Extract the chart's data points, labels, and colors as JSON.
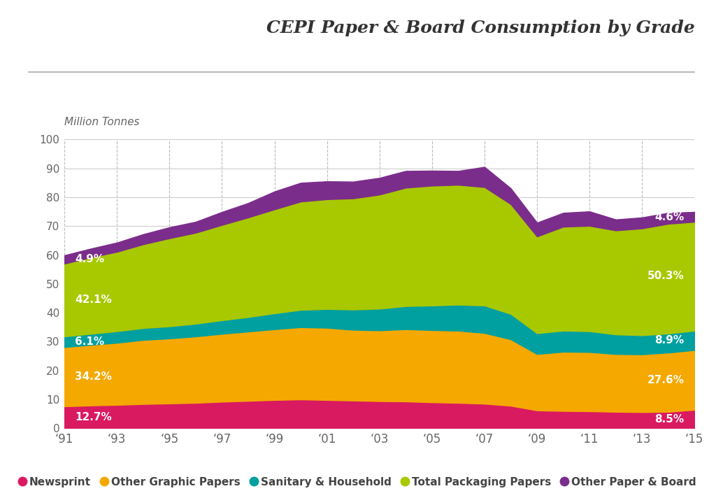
{
  "title": "CEPI Paper & Board Consumption by Grade",
  "ylabel": "Million Tonnes",
  "years": [
    1991,
    1992,
    1993,
    1994,
    1995,
    1996,
    1997,
    1998,
    1999,
    2000,
    2001,
    2002,
    2003,
    2004,
    2005,
    2006,
    2007,
    2008,
    2009,
    2010,
    2011,
    2012,
    2013,
    2014,
    2015
  ],
  "newsprint": [
    7.6,
    7.9,
    8.1,
    8.4,
    8.6,
    8.8,
    9.2,
    9.5,
    9.8,
    10.0,
    9.8,
    9.6,
    9.4,
    9.3,
    9.0,
    8.8,
    8.5,
    7.8,
    6.2,
    6.0,
    5.9,
    5.7,
    5.6,
    5.7,
    6.4
  ],
  "other_graphic": [
    20.5,
    21.0,
    21.5,
    22.2,
    22.5,
    23.0,
    23.5,
    24.0,
    24.5,
    25.0,
    25.0,
    24.5,
    24.5,
    25.0,
    25.0,
    25.0,
    24.5,
    23.0,
    19.5,
    20.5,
    20.5,
    20.0,
    20.0,
    20.5,
    20.7
  ],
  "sanitary": [
    3.7,
    3.8,
    4.0,
    4.1,
    4.2,
    4.4,
    4.7,
    5.0,
    5.5,
    6.0,
    6.5,
    7.0,
    7.5,
    8.0,
    8.5,
    9.0,
    9.5,
    8.8,
    7.2,
    7.3,
    7.2,
    6.8,
    6.6,
    6.6,
    6.7
  ],
  "total_packaging": [
    25.2,
    26.5,
    27.5,
    29.0,
    30.5,
    31.5,
    33.0,
    34.5,
    36.0,
    37.5,
    38.0,
    38.5,
    39.5,
    41.0,
    41.5,
    41.5,
    41.0,
    38.0,
    33.5,
    36.0,
    36.5,
    36.0,
    37.0,
    38.0,
    37.7
  ],
  "other_paper": [
    2.9,
    3.0,
    3.2,
    3.5,
    3.8,
    3.8,
    4.5,
    5.0,
    6.2,
    6.5,
    6.2,
    5.8,
    5.8,
    5.8,
    5.2,
    4.8,
    7.0,
    5.5,
    4.8,
    4.8,
    5.0,
    3.8,
    3.8,
    3.8,
    3.4
  ],
  "colors": {
    "newsprint": "#D91A60",
    "other_graphic": "#F5A800",
    "sanitary": "#009FA0",
    "total_packaging": "#A8C800",
    "other_paper": "#7B2D8B"
  },
  "legend_labels": [
    "Newsprint",
    "Other Graphic Papers",
    "Sanitary & Household",
    "Total Packaging Papers",
    "Other Paper & Board"
  ],
  "ylim": [
    0,
    100
  ],
  "yticks": [
    0,
    10,
    20,
    30,
    40,
    50,
    60,
    70,
    80,
    90,
    100
  ],
  "background_color": "#FFFFFF"
}
